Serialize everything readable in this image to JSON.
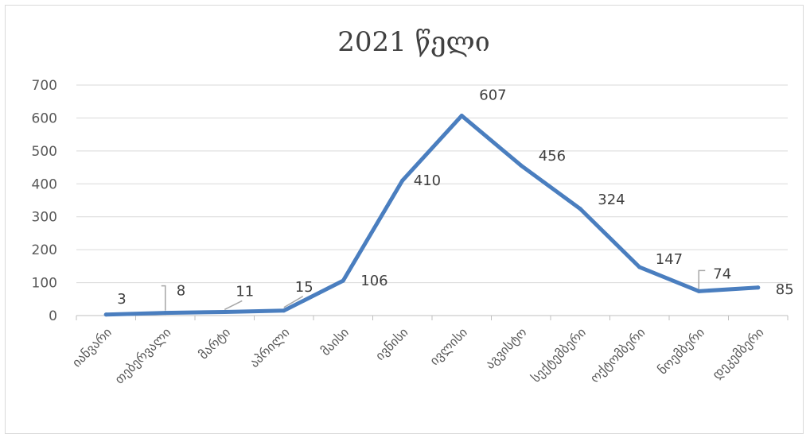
{
  "chart_data": {
    "type": "line",
    "title": "2021 წელი",
    "categories": [
      "იანვარი",
      "თებერვალი",
      "მარტი",
      "აპრილი",
      "მაისი",
      "ივნისი",
      "ივლისი",
      "აგვისტო",
      "სექტემბერი",
      "ოქტომბერი",
      "ნოემბერი",
      "დეკემბერი"
    ],
    "values": [
      3,
      8,
      11,
      15,
      106,
      410,
      607,
      456,
      324,
      147,
      74,
      85
    ],
    "data_labels": [
      "3",
      "8",
      "11",
      "15",
      "106",
      "410",
      "607",
      "456",
      "324",
      "147",
      "74",
      "85"
    ],
    "y_ticks": [
      "0",
      "100",
      "200",
      "300",
      "400",
      "500",
      "600",
      "700"
    ],
    "ylim": [
      0,
      700
    ],
    "grid": true,
    "legend": "none",
    "colors": {
      "series": "#4a7ebf",
      "grid": "#d9d9d9",
      "axis": "#bfbfbf",
      "text": "#595959",
      "leader": "#a6a6a6"
    }
  }
}
